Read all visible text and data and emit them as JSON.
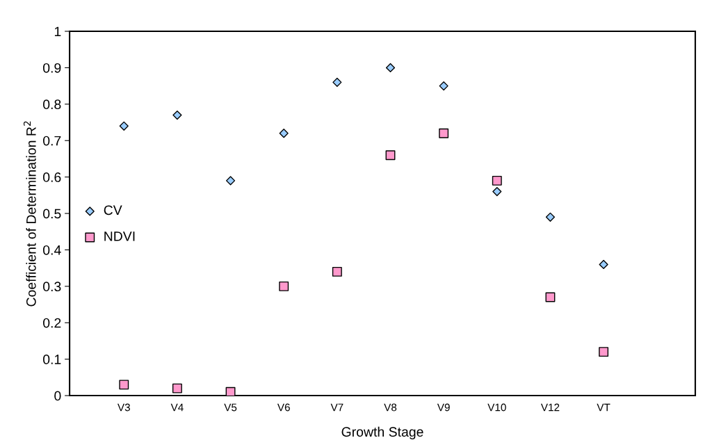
{
  "chart_data": {
    "type": "scatter",
    "xlabel": "Growth Stage",
    "ylabel": "Coefficient of Determination R$^{2}$",
    "categories": [
      "V3",
      "V4",
      "V5",
      "V6",
      "V7",
      "V8",
      "V9",
      "V10",
      "V12",
      "VT"
    ],
    "series": [
      {
        "name": "CV",
        "color": "#99ccff",
        "marker": "diamond",
        "values": [
          0.74,
          0.77,
          0.59,
          0.72,
          0.86,
          0.9,
          0.85,
          0.56,
          0.49,
          0.36
        ]
      },
      {
        "name": "NDVI",
        "color": "#ff99cc",
        "marker": "square",
        "values": [
          0.03,
          0.02,
          0.01,
          0.3,
          0.34,
          0.66,
          0.72,
          0.59,
          0.27,
          0.12
        ]
      }
    ],
    "ylim": [
      0,
      1
    ],
    "yticks": [
      0,
      0.1,
      0.2,
      0.3,
      0.4,
      0.5,
      0.6,
      0.7,
      0.8,
      0.9,
      1
    ],
    "grid": false,
    "legend": "left"
  }
}
